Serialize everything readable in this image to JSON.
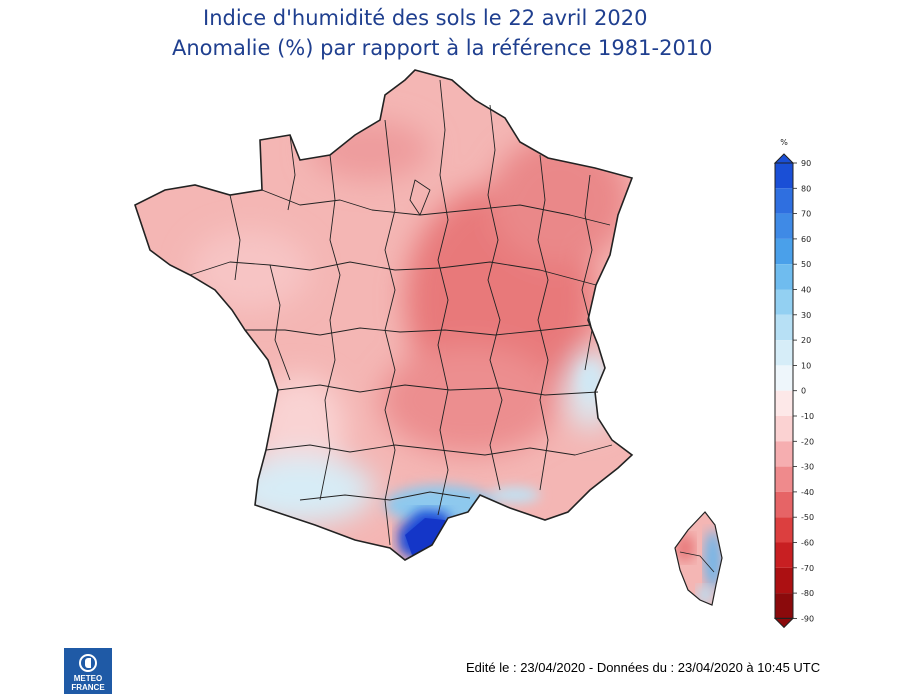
{
  "title_line1": "Indice d'humidité des sols le 22 avril 2020",
  "title_line2": "Anomalie (%) par rapport à la référence 1981-2010",
  "legend": {
    "unit": "%",
    "ticks": [
      "90",
      "80",
      "70",
      "60",
      "50",
      "40",
      "30",
      "20",
      "10",
      "0",
      "-10",
      "-20",
      "-30",
      "-40",
      "-50",
      "-60",
      "-70",
      "-80",
      "-90"
    ],
    "colors": [
      "#1a4fd6",
      "#2f6fe0",
      "#3f8ae6",
      "#4aa0ea",
      "#6fbcef",
      "#93d0f2",
      "#b7e0f5",
      "#d6edf8",
      "#eef6fb",
      "#fde8e8",
      "#fbd2d2",
      "#f6aeb0",
      "#ef8a8c",
      "#e66466",
      "#dc3f3f",
      "#c81f22",
      "#ac1012",
      "#8b0a0c"
    ]
  },
  "footer": "Edité le : 23/04/2020 - Données du : 23/04/2020 à 10:45 UTC",
  "logo": {
    "line1": "METEO",
    "line2": "FRANCE"
  },
  "colors": {
    "base": "#f4b6b4",
    "strong": "#e8797a",
    "light": "#f9d3d3",
    "pale_blue": "#d7ecf6",
    "mid_blue": "#8ec9ee",
    "deep_blue": "#1848d8",
    "border": "#222222"
  }
}
